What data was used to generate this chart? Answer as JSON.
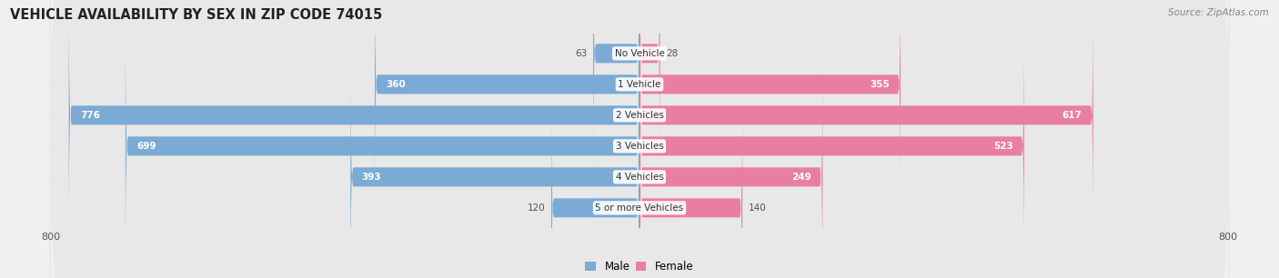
{
  "title": "VEHICLE AVAILABILITY BY SEX IN ZIP CODE 74015",
  "source": "Source: ZipAtlas.com",
  "categories": [
    "No Vehicle",
    "1 Vehicle",
    "2 Vehicles",
    "3 Vehicles",
    "4 Vehicles",
    "5 or more Vehicles"
  ],
  "male_values": [
    63,
    360,
    776,
    699,
    393,
    120
  ],
  "female_values": [
    28,
    355,
    617,
    523,
    249,
    140
  ],
  "male_color": "#7baad4",
  "female_color": "#e87fa0",
  "label_color_inside": "#ffffff",
  "label_color_outside": "#555555",
  "background_color": "#f0f0f0",
  "row_bg_light": "#e8e8e8",
  "row_bg_dark": "#dcdcdc",
  "axis_limit": 800,
  "inside_threshold_male": 150,
  "inside_threshold_female": 150,
  "legend_male": "Male",
  "legend_female": "Female"
}
